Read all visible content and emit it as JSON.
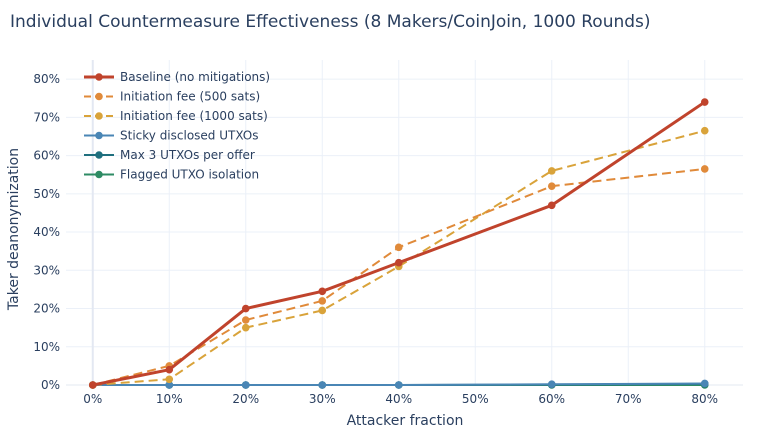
{
  "chart_data": {
    "type": "line",
    "title": "Individual Countermeasure Effectiveness (8 Makers/CoinJoin, 1000 Rounds)",
    "xlabel": "Attacker fraction",
    "ylabel": "Taker deanonymization",
    "xlim": [
      -0.035,
      0.85
    ],
    "ylim": [
      0,
      0.85
    ],
    "x_ticks": [
      0,
      0.1,
      0.2,
      0.3,
      0.4,
      0.5,
      0.6,
      0.7,
      0.8
    ],
    "x_tick_labels": [
      "0%",
      "10%",
      "20%",
      "30%",
      "40%",
      "50%",
      "60%",
      "70%",
      "80%"
    ],
    "y_ticks": [
      0,
      0.1,
      0.2,
      0.3,
      0.4,
      0.5,
      0.6,
      0.7,
      0.8
    ],
    "y_tick_labels": [
      "0%",
      "10%",
      "20%",
      "30%",
      "40%",
      "50%",
      "60%",
      "70%",
      "80%"
    ],
    "grid": true,
    "legend_position": "top-left",
    "x": [
      0,
      0.1,
      0.2,
      0.3,
      0.4,
      0.6,
      0.8
    ],
    "series": [
      {
        "name": "Baseline (no mitigations)",
        "color": "#c0432c",
        "dash": "solid",
        "width": 3,
        "values": [
          0,
          0.04,
          0.2,
          0.245,
          0.32,
          0.47,
          0.74
        ]
      },
      {
        "name": "Initiation fee (500 sats)",
        "color": "#e08a3a",
        "dash": "dash",
        "width": 2,
        "values": [
          0,
          0.05,
          0.17,
          0.22,
          0.36,
          0.52,
          0.565
        ]
      },
      {
        "name": "Initiation fee (1000 sats)",
        "color": "#d9a33a",
        "dash": "dash",
        "width": 2,
        "values": [
          0,
          0.015,
          0.15,
          0.195,
          0.31,
          0.56,
          0.665
        ]
      },
      {
        "name": "Sticky disclosed UTXOs",
        "color": "#4a86b5",
        "dash": "solid",
        "width": 2,
        "values": [
          0,
          0,
          0,
          0,
          0,
          0.002,
          0.004
        ]
      },
      {
        "name": "Max 3 UTXOs per offer",
        "color": "#1f6f7e",
        "dash": "solid",
        "width": 2,
        "values": [
          0,
          0,
          0,
          0,
          0,
          0.001,
          0.003
        ]
      },
      {
        "name": "Flagged UTXO isolation",
        "color": "#2e8b64",
        "dash": "solid",
        "width": 2,
        "values": [
          0,
          0,
          0,
          0,
          0,
          0,
          0
        ]
      }
    ]
  }
}
